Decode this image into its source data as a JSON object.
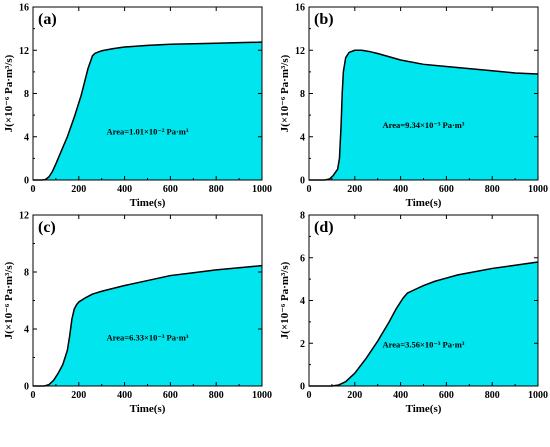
{
  "figure": {
    "fill_color": "#00e5ee",
    "line_color": "#000000"
  },
  "chart_data": [
    {
      "type": "area",
      "panel_label": "(a)",
      "xlabel": "Time(s)",
      "ylabel": "J(×10⁻⁶ Pa·m³/s)",
      "xlim": [
        0,
        1000
      ],
      "ylim": [
        0,
        16
      ],
      "xticks": [
        0,
        200,
        400,
        600,
        800,
        1000
      ],
      "yticks": [
        0,
        4,
        8,
        12,
        16
      ],
      "annotation": {
        "text": "Area=1.01×10⁻² Pa·m³",
        "x": 500,
        "y": 4.2
      },
      "x": [
        0,
        40,
        55,
        70,
        85,
        100,
        120,
        150,
        180,
        210,
        240,
        260,
        270,
        280,
        300,
        350,
        400,
        500,
        600,
        700,
        800,
        900,
        1000
      ],
      "y": [
        0,
        0,
        0.05,
        0.3,
        0.8,
        1.5,
        2.5,
        4.0,
        5.8,
        7.8,
        10.3,
        11.5,
        11.7,
        11.8,
        11.95,
        12.15,
        12.3,
        12.45,
        12.55,
        12.6,
        12.65,
        12.7,
        12.75
      ]
    },
    {
      "type": "area",
      "panel_label": "(b)",
      "xlabel": "Time(s)",
      "ylabel": "J(×10⁻⁶ Pa·m³/s)",
      "xlim": [
        0,
        1000
      ],
      "ylim": [
        0,
        16
      ],
      "xticks": [
        0,
        200,
        400,
        600,
        800,
        1000
      ],
      "yticks": [
        0,
        4,
        8,
        12,
        16
      ],
      "annotation": {
        "text": "Area=9.34×10⁻³ Pa·m³",
        "x": 500,
        "y": 4.8
      },
      "x": [
        0,
        70,
        90,
        105,
        115,
        125,
        133,
        140,
        145,
        150,
        160,
        175,
        200,
        230,
        260,
        300,
        350,
        400,
        500,
        600,
        700,
        800,
        900,
        1000
      ],
      "y": [
        0,
        0,
        0.1,
        0.4,
        0.7,
        1.0,
        2.0,
        5.0,
        8.0,
        10.0,
        11.3,
        11.8,
        12.0,
        12.0,
        11.9,
        11.7,
        11.4,
        11.1,
        10.7,
        10.5,
        10.3,
        10.1,
        9.9,
        9.8
      ]
    },
    {
      "type": "area",
      "panel_label": "(c)",
      "xlabel": "Time(s)",
      "ylabel": "J(×10⁻⁶ Pa·m³/s)",
      "xlim": [
        0,
        1000
      ],
      "ylim": [
        0,
        12
      ],
      "xticks": [
        0,
        200,
        400,
        600,
        800,
        1000
      ],
      "yticks": [
        0,
        4,
        8,
        12
      ],
      "annotation": {
        "text": "Area=6.33×10⁻³ Pa·m³",
        "x": 500,
        "y": 3.2
      },
      "x": [
        0,
        50,
        70,
        90,
        110,
        130,
        150,
        160,
        170,
        180,
        190,
        200,
        230,
        260,
        300,
        350,
        400,
        500,
        600,
        700,
        800,
        900,
        1000
      ],
      "y": [
        0,
        0,
        0.1,
        0.4,
        0.9,
        1.5,
        2.5,
        3.5,
        4.7,
        5.4,
        5.7,
        5.9,
        6.2,
        6.45,
        6.65,
        6.85,
        7.05,
        7.4,
        7.75,
        7.95,
        8.15,
        8.3,
        8.45
      ]
    },
    {
      "type": "area",
      "panel_label": "(d)",
      "xlabel": "Time(s)",
      "ylabel": "J(×10⁻⁶ Pa·m³/s)",
      "xlim": [
        0,
        1000
      ],
      "ylim": [
        0,
        8
      ],
      "xticks": [
        0,
        200,
        400,
        600,
        800,
        1000
      ],
      "yticks": [
        0,
        2,
        4,
        6,
        8
      ],
      "annotation": {
        "text": "Area=3.56×10⁻³ Pa·m³",
        "x": 500,
        "y": 1.8
      },
      "x": [
        0,
        100,
        130,
        160,
        200,
        250,
        300,
        350,
        380,
        410,
        430,
        450,
        500,
        550,
        600,
        650,
        700,
        800,
        900,
        1000
      ],
      "y": [
        0,
        0,
        0.05,
        0.2,
        0.6,
        1.3,
        2.1,
        3.0,
        3.6,
        4.1,
        4.35,
        4.45,
        4.7,
        4.9,
        5.05,
        5.2,
        5.3,
        5.5,
        5.65,
        5.8
      ]
    }
  ]
}
